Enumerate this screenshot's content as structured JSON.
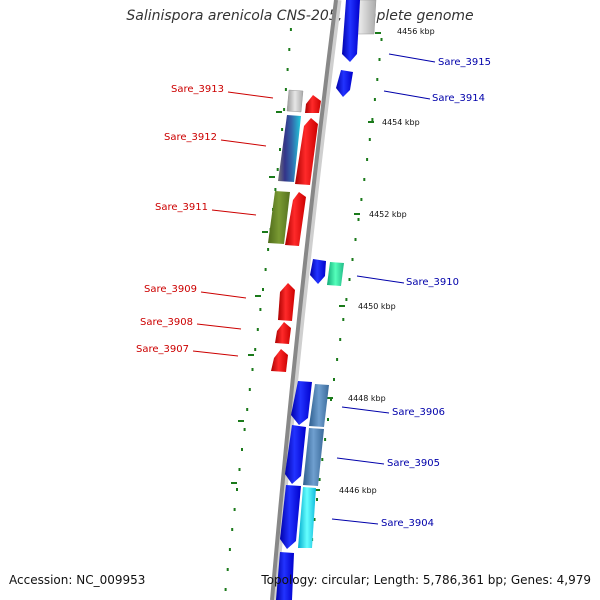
{
  "title": "Salinispora arenicola CNS-205, complete genome",
  "footer": {
    "accession": "Accession: NC_009953",
    "stats": "Topology: circular; Length: 5,786,361 bp; Genes: 4,979"
  },
  "colors": {
    "reverse_label": "#cc0000",
    "forward_label": "#0000aa",
    "backbone": "#888888",
    "tick": "#1a7a1a"
  },
  "kbp_labels": [
    "4456 kbp",
    "4454 kbp",
    "4452 kbp",
    "4450 kbp",
    "4448 kbp",
    "4446 kbp"
  ],
  "reverse_labels": [
    "Sare_3913",
    "Sare_3912",
    "Sare_3911",
    "Sare_3909",
    "Sare_3908",
    "Sare_3907"
  ],
  "forward_labels": [
    "Sare_3915",
    "Sare_3914",
    "Sare_3910",
    "Sare_3906",
    "Sare_3905",
    "Sare_3904"
  ]
}
